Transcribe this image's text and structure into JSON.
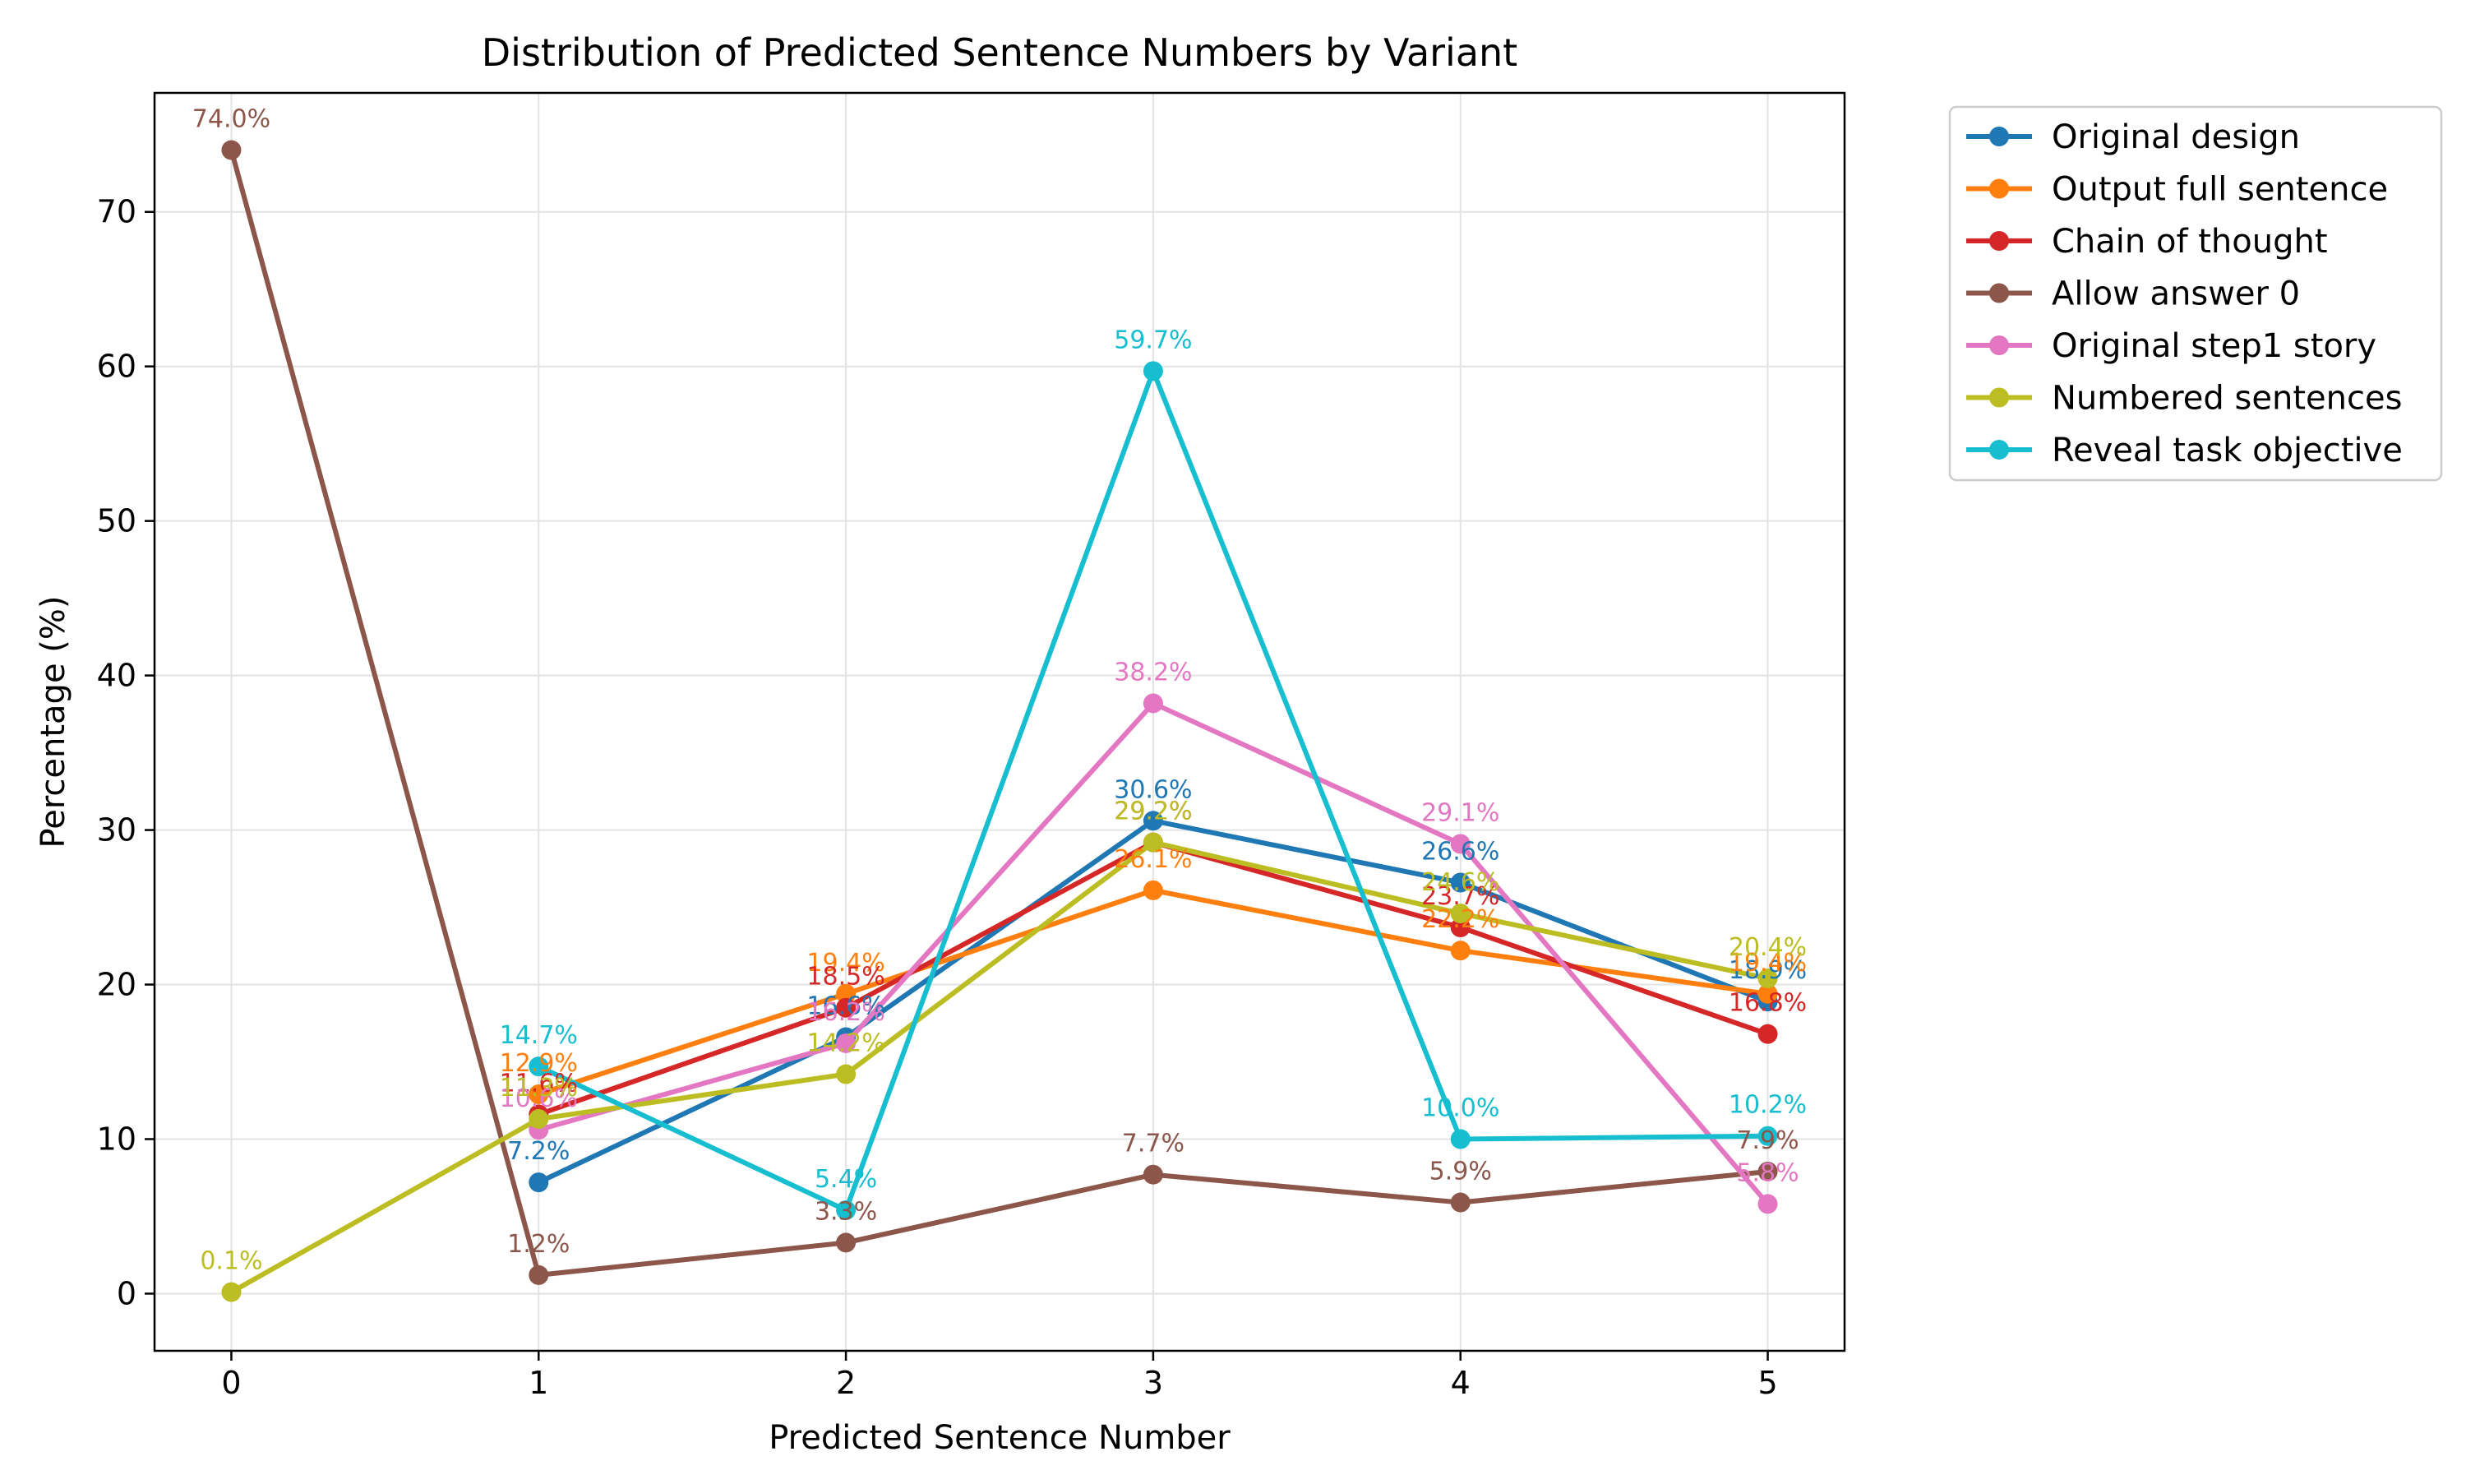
{
  "chart_data": {
    "type": "line",
    "title": "Distribution of Predicted Sentence Numbers by Variant",
    "xlabel": "Predicted Sentence Number",
    "ylabel": "Percentage (%)",
    "xlim": [
      -0.25,
      5.25
    ],
    "ylim": [
      -3.7,
      77.7
    ],
    "xticks": [
      0,
      1,
      2,
      3,
      4,
      5
    ],
    "yticks": [
      0,
      10,
      20,
      30,
      40,
      50,
      60,
      70
    ],
    "grid": true,
    "legend_position": "outside-top-right",
    "series": [
      {
        "name": "Original design",
        "color": "#1f77b4",
        "points": [
          [
            1,
            7.2
          ],
          [
            2,
            16.6
          ],
          [
            3,
            30.6
          ],
          [
            4,
            26.6
          ],
          [
            5,
            18.9
          ]
        ],
        "labels": [
          "7.2%",
          "16.6%",
          "30.6%",
          "26.6%",
          "18.9%"
        ]
      },
      {
        "name": "Output full sentence",
        "color": "#ff7f0e",
        "points": [
          [
            1,
            12.9
          ],
          [
            2,
            19.4
          ],
          [
            3,
            26.1
          ],
          [
            4,
            22.2
          ],
          [
            5,
            19.4
          ]
        ],
        "labels": [
          "12.9%",
          "19.4%",
          "26.1%",
          "22.2%",
          "19.4%"
        ]
      },
      {
        "name": "Chain of thought",
        "color": "#d62728",
        "points": [
          [
            1,
            11.6
          ],
          [
            2,
            18.5
          ],
          [
            3,
            29.2
          ],
          [
            4,
            23.7
          ],
          [
            5,
            16.8
          ]
        ],
        "labels": [
          "11.6%",
          "18.5%",
          "29.2%",
          "23.7%",
          "16.8%"
        ]
      },
      {
        "name": "Allow answer 0",
        "color": "#8c564b",
        "points": [
          [
            0,
            74.0
          ],
          [
            1,
            1.2
          ],
          [
            2,
            3.3
          ],
          [
            3,
            7.7
          ],
          [
            4,
            5.9
          ],
          [
            5,
            7.9
          ]
        ],
        "labels": [
          "74.0%",
          "1.2%",
          "3.3%",
          "7.7%",
          "5.9%",
          "7.9%"
        ]
      },
      {
        "name": "Original step1 story",
        "color": "#e377c2",
        "points": [
          [
            1,
            10.6
          ],
          [
            2,
            16.2
          ],
          [
            3,
            38.2
          ],
          [
            4,
            29.1
          ],
          [
            5,
            5.8
          ]
        ],
        "labels": [
          "10.6%",
          "16.2%",
          "38.2%",
          "29.1%",
          "5.8%"
        ]
      },
      {
        "name": "Numbered sentences",
        "color": "#bcbd22",
        "points": [
          [
            0,
            0.1
          ],
          [
            1,
            11.3
          ],
          [
            2,
            14.2
          ],
          [
            3,
            29.2
          ],
          [
            4,
            24.6
          ],
          [
            5,
            20.4
          ]
        ],
        "labels": [
          "0.1%",
          "11.3%",
          "14.2%",
          "29.2%",
          "24.6%",
          "20.4%"
        ]
      },
      {
        "name": "Reveal task objective",
        "color": "#17becf",
        "points": [
          [
            1,
            14.7
          ],
          [
            2,
            5.4
          ],
          [
            3,
            59.7
          ],
          [
            4,
            10.0
          ],
          [
            5,
            10.2
          ]
        ],
        "labels": [
          "14.7%",
          "5.4%",
          "59.7%",
          "10.0%",
          "10.2%"
        ]
      }
    ]
  }
}
